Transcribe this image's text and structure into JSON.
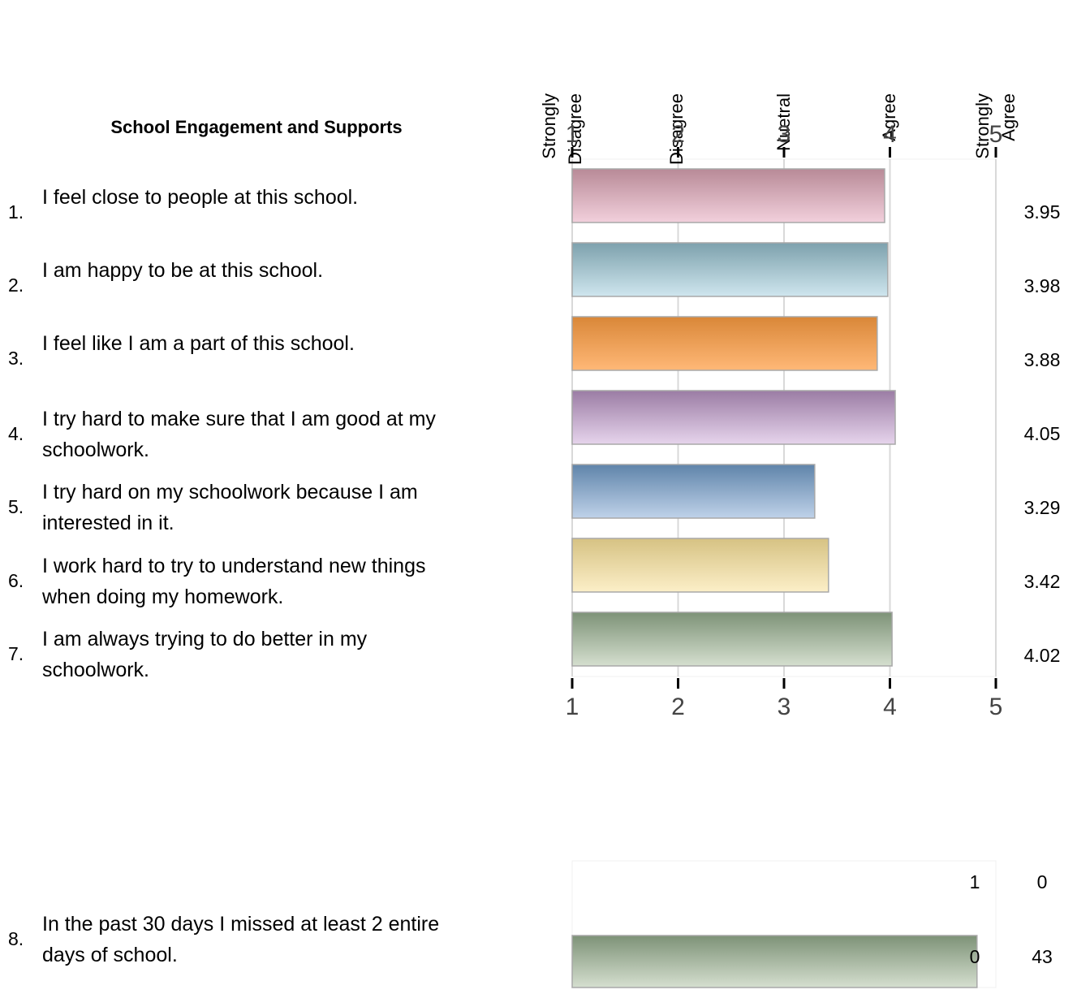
{
  "title": "School Engagement and Supports",
  "scale_labels": [
    {
      "lines": [
        "Strongly",
        "Disagree"
      ],
      "value": 1
    },
    {
      "lines": [
        "Disagree"
      ],
      "value": 2
    },
    {
      "lines": [
        "Nuetral"
      ],
      "value": 3
    },
    {
      "lines": [
        "Agree"
      ],
      "value": 4
    },
    {
      "lines": [
        "Strongly",
        "Agree"
      ],
      "value": 5
    }
  ],
  "items": [
    {
      "number": "1.",
      "lines": [
        "I feel close to people at this school."
      ]
    },
    {
      "number": "2.",
      "lines": [
        "I am happy to be at this school."
      ]
    },
    {
      "number": "3.",
      "lines": [
        "I feel like I am a part of this school."
      ]
    },
    {
      "number": "4.",
      "lines": [
        "I try hard to make sure that I am good at my",
        "schoolwork."
      ]
    },
    {
      "number": "5.",
      "lines": [
        "I try hard on my schoolwork because I am",
        "interested in it."
      ]
    },
    {
      "number": "6.",
      "lines": [
        "I work hard to try to understand new things",
        "when doing my homework."
      ]
    },
    {
      "number": "7.",
      "lines": [
        "I am always trying to do better in my",
        "schoolwork."
      ]
    },
    {
      "number": "8.",
      "lines": [
        "In the past 30 days I missed at least 2 entire",
        "days of school."
      ]
    }
  ],
  "chart_data": [
    {
      "type": "bar",
      "orientation": "horizontal",
      "title": "School Engagement and Supports",
      "categories": [
        "1.",
        "2.",
        "3.",
        "4.",
        "5.",
        "6.",
        "7."
      ],
      "values": [
        3.95,
        3.98,
        3.88,
        4.05,
        3.29,
        3.42,
        4.02
      ],
      "value_labels": [
        "3.95",
        "3.98",
        "3.88",
        "4.05",
        "3.29",
        "3.42",
        "4.02"
      ],
      "xlim": [
        1,
        5
      ],
      "ticks": [
        "1",
        "2",
        "3",
        "4",
        "5"
      ],
      "grid": true,
      "bar_colors": [
        {
          "top": "#b88a97",
          "bottom": "#f2d0dc"
        },
        {
          "top": "#7da1ad",
          "bottom": "#cfe6ee"
        },
        {
          "top": "#d98738",
          "bottom": "#ffb877"
        },
        {
          "top": "#9b7ca4",
          "bottom": "#e6d4ec"
        },
        {
          "top": "#5f84aa",
          "bottom": "#bfd2e9"
        },
        {
          "top": "#d6c283",
          "bottom": "#fcefc8"
        },
        {
          "top": "#7d9277",
          "bottom": "#d5dfcf"
        }
      ]
    },
    {
      "type": "bar",
      "orientation": "horizontal",
      "categories": [
        "1",
        "0"
      ],
      "values": [
        0,
        43
      ],
      "value_labels": [
        "0",
        "43"
      ],
      "xlim": [
        0,
        45
      ],
      "bar_colors": [
        {
          "top": "#7d9277",
          "bottom": "#d5dfcf"
        },
        {
          "top": "#7d9277",
          "bottom": "#d5dfcf"
        }
      ]
    }
  ]
}
